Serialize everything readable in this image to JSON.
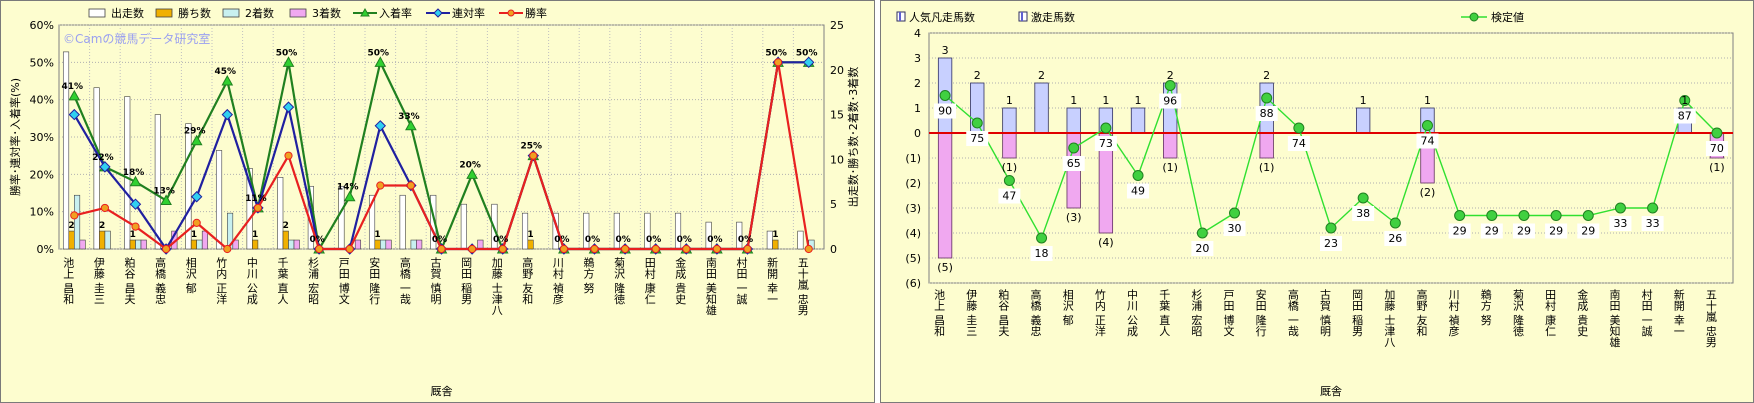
{
  "chart_data": [
    {
      "type": "bar",
      "watermark": "©Camの競馬データ研究室",
      "xlabel": "厩舎",
      "ylabel_left": "勝率･連対率･入着率(%)",
      "ylabel_right": "出走数･勝ち数･2着数･3着数",
      "ylim_left": [
        0,
        60
      ],
      "ylim_right": [
        0,
        25
      ],
      "y_ticks_left": [
        "0%",
        "10%",
        "20%",
        "30%",
        "40%",
        "50%",
        "60%"
      ],
      "y_ticks_right": [
        "0",
        "5",
        "10",
        "15",
        "20",
        "25"
      ],
      "legend_position": "top",
      "categories": [
        "池上 昌和",
        "伊藤 圭三",
        "粕谷 昌夫",
        "高橋 義忠",
        "相沢 郁",
        "竹内 正洋",
        "中川 公成",
        "千葉 直人",
        "杉浦 宏昭",
        "戸田 博文",
        "安田 隆行",
        "高橋 一哉",
        "古賀 慎明",
        "岡田 稲男",
        "加藤 士津八",
        "高野 友和",
        "川村 禎彦",
        "鵜方 努",
        "菊沢 隆徳",
        "田村 康仁",
        "金成 貴史",
        "南田 美知雄",
        "村田 一誠",
        "新開 幸一",
        "五十嵐 忠男"
      ],
      "series": [
        {
          "name": "出走数",
          "kind": "bar",
          "color": "#ffffff",
          "values": [
            22,
            18,
            17,
            15,
            14,
            11,
            9,
            8,
            7,
            7,
            6,
            6,
            6,
            5,
            5,
            4,
            4,
            4,
            4,
            4,
            4,
            3,
            3,
            2,
            2
          ]
        },
        {
          "name": "勝ち数",
          "kind": "bar",
          "color": "#f0b000",
          "values": [
            2,
            2,
            1,
            0,
            1,
            0,
            1,
            2,
            0,
            0,
            1,
            0,
            0,
            0,
            0,
            1,
            0,
            0,
            0,
            0,
            0,
            0,
            0,
            1,
            0
          ]
        },
        {
          "name": "2着数",
          "kind": "bar",
          "color": "#c8f0f0",
          "values": [
            6,
            2,
            1,
            0,
            1,
            4,
            0,
            1,
            0,
            0,
            1,
            1,
            0,
            0,
            0,
            0,
            0,
            0,
            0,
            0,
            0,
            0,
            0,
            0,
            1
          ]
        },
        {
          "name": "3着数",
          "kind": "bar",
          "color": "#f0a8f0",
          "values": [
            1,
            0,
            1,
            2,
            2,
            1,
            0,
            1,
            0,
            1,
            1,
            1,
            0,
            1,
            0,
            0,
            0,
            0,
            0,
            0,
            0,
            0,
            0,
            0,
            0
          ]
        },
        {
          "name": "入着率",
          "kind": "line",
          "color": "#208020",
          "values": [
            41,
            22,
            18,
            13,
            29,
            45,
            11,
            50,
            0,
            14,
            50,
            33,
            0,
            20,
            0,
            25,
            0,
            0,
            0,
            0,
            0,
            0,
            0,
            50,
            50
          ]
        },
        {
          "name": "連対率",
          "kind": "line",
          "color": "#2020a0",
          "values": [
            36,
            22,
            12,
            0,
            14,
            36,
            11,
            38,
            0,
            0,
            33,
            17,
            0,
            0,
            0,
            25,
            0,
            0,
            0,
            0,
            0,
            0,
            0,
            50,
            50
          ]
        },
        {
          "name": "勝率",
          "kind": "line",
          "color": "#e82020",
          "values": [
            9,
            11,
            6,
            0,
            7,
            0,
            11,
            25,
            0,
            0,
            17,
            17,
            0,
            0,
            0,
            25,
            0,
            0,
            0,
            0,
            0,
            0,
            0,
            50,
            0
          ]
        }
      ],
      "win_count_labels": [
        "2",
        "2",
        "1",
        "",
        "1",
        "",
        "1",
        "2",
        "",
        "",
        "1",
        "",
        "",
        "",
        "",
        "1",
        "",
        "",
        "",
        "",
        "",
        "",
        "",
        "1",
        ""
      ],
      "placed_rate_labels": [
        "41%",
        "22%",
        "18%",
        "13%",
        "29%",
        "45%",
        "11%",
        "50%",
        "0%",
        "14%",
        "50%",
        "33%",
        "0%",
        "20%",
        "0%",
        "25%",
        "0%",
        "0%",
        "0%",
        "0%",
        "0%",
        "0%",
        "0%",
        "50%",
        "50%"
      ]
    },
    {
      "type": "bar",
      "xlabel": "厩舎",
      "ylim": [
        -6,
        4
      ],
      "y_ticks": [
        "(6)",
        "(5)",
        "(4)",
        "(3)",
        "(2)",
        "(1)",
        "0",
        "1",
        "2",
        "3",
        "4"
      ],
      "legend_position": "top",
      "categories": [
        "池上 昌和",
        "伊藤 圭三",
        "粕谷 昌夫",
        "高橋 義忠",
        "相沢 郁",
        "竹内 正洋",
        "中川 公成",
        "千葉 直人",
        "杉浦 宏昭",
        "戸田 博文",
        "安田 隆行",
        "高橋 一哉",
        "古賀 慎明",
        "岡田 稲男",
        "加藤 士津八",
        "高野 友和",
        "川村 禎彦",
        "鵜方 努",
        "菊沢 隆徳",
        "田村 康仁",
        "金成 貴史",
        "南田 美知雄",
        "村田 一誠",
        "新開 幸一",
        "五十嵐 忠男"
      ],
      "series": [
        {
          "name": "人気凡走馬数",
          "kind": "bar",
          "color": "#f0a8f0",
          "values": [
            -5,
            0,
            -1,
            0,
            -3,
            -4,
            0,
            -1,
            0,
            0,
            -1,
            0,
            0,
            0,
            0,
            -2,
            0,
            0,
            0,
            0,
            0,
            0,
            0,
            0,
            -1
          ]
        },
        {
          "name": "激走馬数",
          "kind": "bar",
          "color": "#c8d0ff",
          "values": [
            3,
            2,
            1,
            2,
            1,
            1,
            1,
            2,
            0,
            0,
            2,
            0,
            0,
            1,
            0,
            1,
            0,
            0,
            0,
            0,
            0,
            0,
            0,
            1,
            0
          ]
        },
        {
          "name": "検定値",
          "kind": "line",
          "color": "#30e030",
          "values": [
            1.5,
            0.4,
            -1.9,
            -4.2,
            -0.6,
            0.2,
            -1.7,
            1.9,
            -4.0,
            -3.2,
            1.4,
            0.2,
            -3.8,
            -2.6,
            -3.6,
            0.3,
            -3.3,
            -3.3,
            -3.3,
            -3.3,
            -3.3,
            -3.0,
            -3.0,
            1.3,
            0.0
          ]
        }
      ],
      "top_labels": [
        "3",
        "2",
        "1",
        "2",
        "1",
        "1",
        "1",
        "2",
        "",
        "",
        "2",
        "",
        "",
        "1",
        "",
        "1",
        "",
        "",
        "",
        "",
        "",
        "",
        "",
        "1",
        ""
      ],
      "bottom_labels": [
        "(5)",
        "",
        "(1)",
        "",
        "(3)",
        "(4)",
        "",
        "(1)",
        "",
        "",
        "(1)",
        "",
        "",
        "",
        "",
        "(2)",
        "",
        "",
        "",
        "",
        "",
        "",
        "",
        "",
        "(1)"
      ],
      "value_labels": [
        "90",
        "75",
        "47",
        "18",
        "65",
        "73",
        "49",
        "96",
        "20",
        "30",
        "88",
        "74",
        "23",
        "38",
        "26",
        "74",
        "29",
        "29",
        "29",
        "29",
        "29",
        "33",
        "33",
        "87",
        "70"
      ]
    }
  ]
}
